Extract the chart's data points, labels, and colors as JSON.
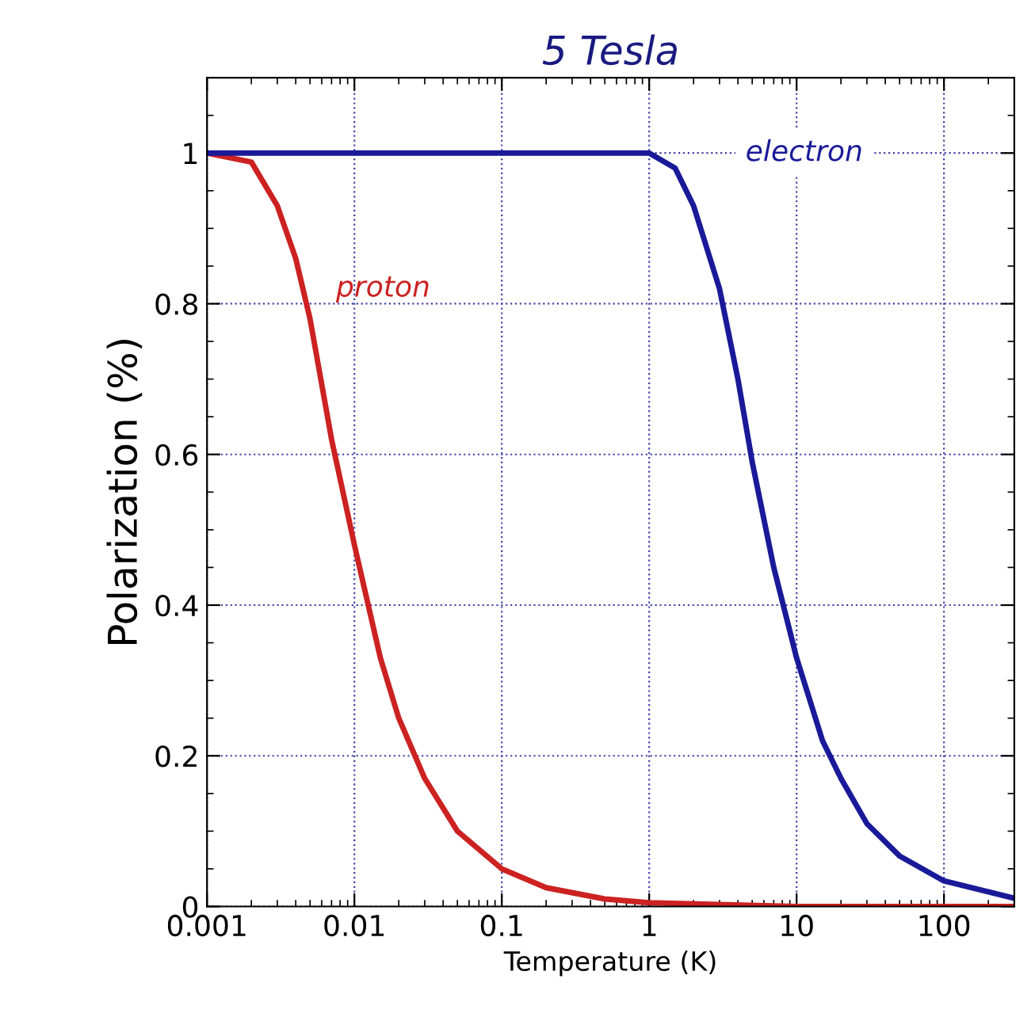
{
  "chart_data": {
    "type": "line",
    "title": "5 Tesla",
    "xlabel": "Temperature (K)",
    "ylabel": "Polarization (%)",
    "log": "x",
    "xlim": [
      0.001,
      300
    ],
    "xticks": [
      0.001,
      0.01,
      0.1,
      1,
      10,
      100
    ],
    "ylim": [
      0,
      1.1
    ],
    "yticks": [
      0,
      0.2,
      0.4,
      0.6,
      0.8,
      1
    ],
    "grid": true,
    "legend": false,
    "marker": "none",
    "line_style": "solid",
    "series": [
      {
        "name": "proton",
        "color": "#cc2222",
        "x": [
          0.001,
          0.002,
          0.003,
          0.004,
          0.005,
          0.007,
          0.01,
          0.015,
          0.02,
          0.03,
          0.05,
          0.1,
          0.2,
          0.5,
          1,
          10,
          300
        ],
        "values": [
          1.0,
          0.988,
          0.93,
          0.86,
          0.78,
          0.62,
          0.48,
          0.33,
          0.25,
          0.17,
          0.1,
          0.05,
          0.025,
          0.01,
          0.005,
          0.0,
          0.0
        ]
      },
      {
        "name": "electron",
        "color": "#1a1a99",
        "x": [
          0.001,
          0.5,
          1,
          1.5,
          2,
          3,
          4,
          5,
          7,
          10,
          15,
          20,
          30,
          50,
          100,
          300
        ],
        "values": [
          1.0,
          1.0,
          1.0,
          0.98,
          0.93,
          0.82,
          0.7,
          0.59,
          0.45,
          0.33,
          0.22,
          0.17,
          0.11,
          0.067,
          0.034,
          0.011
        ]
      }
    ]
  }
}
